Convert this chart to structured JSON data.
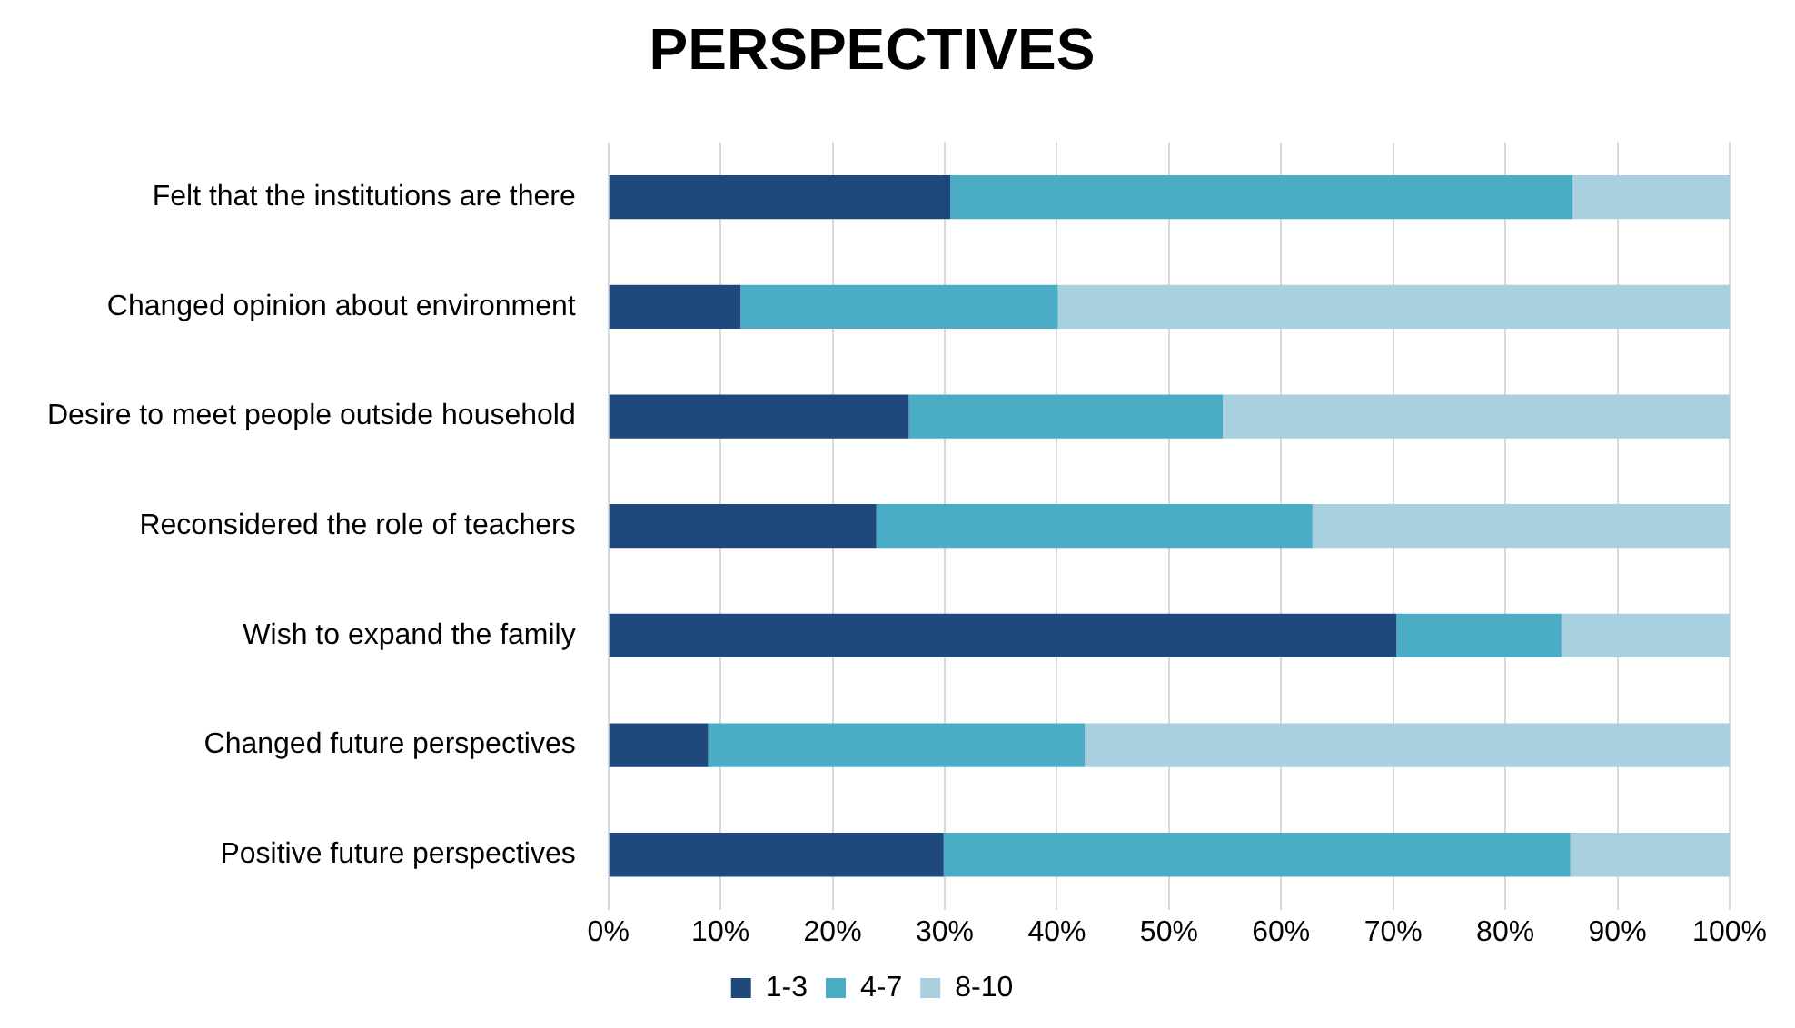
{
  "chart_data": {
    "type": "bar",
    "orientation": "horizontal",
    "stacked": true,
    "title": "PERSPECTIVES",
    "categories": [
      "Felt that the institutions are there",
      "Changed opinion about environment",
      "Desire to meet people outside household",
      "Reconsidered the role of teachers",
      "Wish to expand the family",
      "Changed future perspectives",
      "Positive future perspectives"
    ],
    "series": [
      {
        "name": "1-3",
        "color": "#1f497d",
        "values": [
          30.5,
          11.8,
          26.8,
          23.9,
          70.3,
          8.9,
          29.9
        ]
      },
      {
        "name": "4-7",
        "color": "#4bacc6",
        "values": [
          55.5,
          28.3,
          28.0,
          38.9,
          14.7,
          33.6,
          55.9
        ]
      },
      {
        "name": "8-10",
        "color": "#a9d0de",
        "values": [
          14.0,
          59.9,
          45.2,
          37.2,
          15.0,
          57.5,
          14.2
        ]
      }
    ],
    "xlim": [
      0,
      100
    ],
    "xticks": [
      {
        "value": 0,
        "label": "0%"
      },
      {
        "value": 10,
        "label": "10%"
      },
      {
        "value": 20,
        "label": "20%"
      },
      {
        "value": 30,
        "label": "30%"
      },
      {
        "value": 40,
        "label": "40%"
      },
      {
        "value": 50,
        "label": "50%"
      },
      {
        "value": 60,
        "label": "60%"
      },
      {
        "value": 70,
        "label": "70%"
      },
      {
        "value": 80,
        "label": "80%"
      },
      {
        "value": 90,
        "label": "90%"
      },
      {
        "value": 100,
        "label": "100%"
      }
    ],
    "grid": "x",
    "legend": "bottom"
  }
}
